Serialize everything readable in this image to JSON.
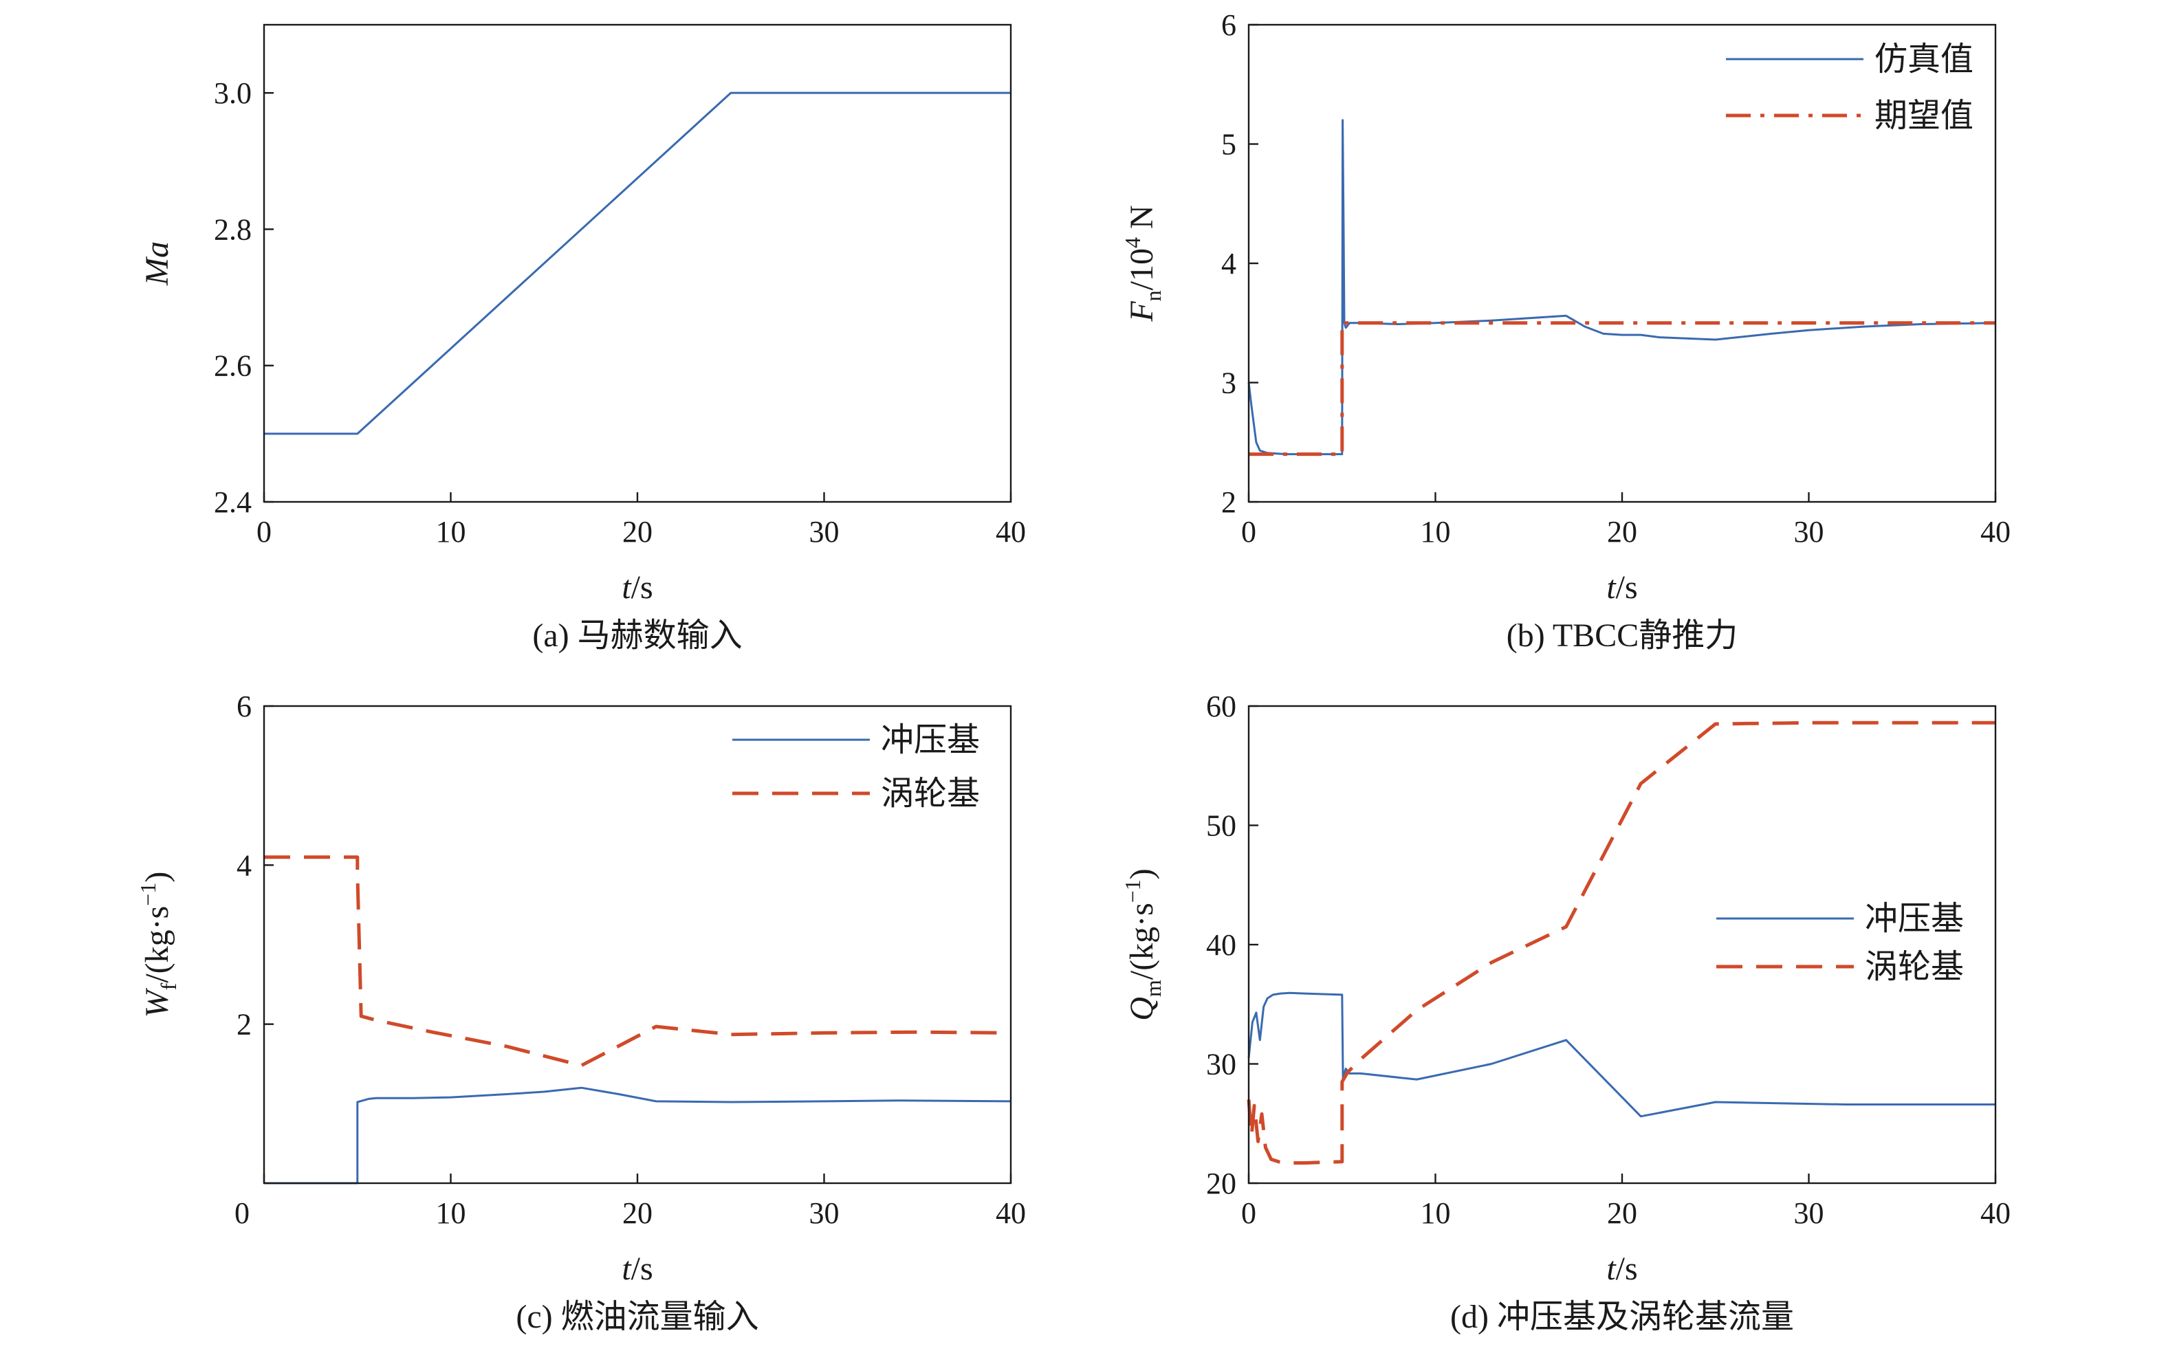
{
  "colors": {
    "blue": "#3a6ab0",
    "red": "#d04a2a",
    "axis": "#1a1a1a"
  },
  "chart_data": [
    {
      "id": "a",
      "type": "line",
      "caption": "(a) 马赫数输入",
      "xlabel_italic": "t",
      "xlabel_unit": "/s",
      "ylabel_italic": "Ma",
      "xlim": [
        0,
        40
      ],
      "ylim": [
        2.4,
        3.1
      ],
      "xticks": [
        0,
        10,
        20,
        30,
        40
      ],
      "yticks": [
        2.4,
        2.6,
        2.8,
        3.0
      ],
      "ytick_labels": [
        "2.4",
        "2.6",
        "2.8",
        "3.0"
      ],
      "series": [
        {
          "color": "blue",
          "dash": "solid",
          "x": [
            0,
            5,
            25,
            40
          ],
          "y": [
            2.5,
            2.5,
            3.0,
            3.0
          ]
        }
      ],
      "legend": []
    },
    {
      "id": "b",
      "type": "line",
      "caption": "(b) TBCC静推力",
      "xlabel_italic": "t",
      "xlabel_unit": "/s",
      "ylabel_italic": "F",
      "ylabel_sub": "n",
      "ylabel_mid": "/10",
      "ylabel_sup": "4",
      "ylabel_tail": " N",
      "xlim": [
        0,
        40
      ],
      "ylim": [
        2,
        6
      ],
      "xticks": [
        0,
        10,
        20,
        30,
        40
      ],
      "yticks": [
        2,
        3,
        4,
        5,
        6
      ],
      "ytick_labels": [
        "2",
        "3",
        "4",
        "5",
        "6"
      ],
      "series": [
        {
          "name": "仿真值",
          "color": "blue",
          "dash": "solid",
          "x": [
            0,
            0.15,
            0.4,
            0.6,
            1,
            2,
            3,
            4,
            4.95,
            5.0,
            5.03,
            5.08,
            5.12,
            5.2,
            5.4,
            6,
            8,
            10,
            13,
            15,
            17,
            18,
            19,
            20,
            21,
            22,
            25,
            28,
            30,
            33,
            36,
            40
          ],
          "y": [
            3.0,
            2.8,
            2.5,
            2.43,
            2.41,
            2.4,
            2.4,
            2.4,
            2.4,
            2.4,
            5.2,
            4.35,
            3.5,
            3.46,
            3.5,
            3.5,
            3.49,
            3.5,
            3.52,
            3.54,
            3.56,
            3.47,
            3.41,
            3.4,
            3.4,
            3.38,
            3.36,
            3.41,
            3.44,
            3.47,
            3.49,
            3.5
          ]
        },
        {
          "name": "期望值",
          "color": "red",
          "dash": "dashdot",
          "x": [
            0,
            5,
            5,
            40
          ],
          "y": [
            2.4,
            2.4,
            3.5,
            3.5
          ]
        }
      ],
      "legend": [
        "仿真值",
        "期望值"
      ]
    },
    {
      "id": "c",
      "type": "line",
      "caption": "(c) 燃油流量输入",
      "xlabel_italic": "t",
      "xlabel_unit": "/s",
      "ylabel_italic": "W",
      "ylabel_sub": "f",
      "ylabel_tail": "/(kg·s",
      "ylabel_sup": "−1",
      "ylabel_close": ")",
      "xlim": [
        0,
        40
      ],
      "ylim": [
        0,
        6
      ],
      "xticks": [
        0,
        10,
        20,
        30,
        40
      ],
      "yticks": [
        2,
        4,
        6
      ],
      "ytick_labels": [
        "2",
        "4",
        "6"
      ],
      "origin_label": "0",
      "series": [
        {
          "name": "冲压基",
          "color": "blue",
          "dash": "solid",
          "x": [
            0,
            5,
            5,
            5.3,
            5.6,
            6,
            8,
            10,
            13,
            15,
            17,
            19,
            21,
            25,
            30,
            34,
            40
          ],
          "y": [
            0,
            0,
            1.02,
            1.04,
            1.06,
            1.07,
            1.07,
            1.08,
            1.12,
            1.15,
            1.2,
            1.12,
            1.03,
            1.02,
            1.03,
            1.04,
            1.03
          ]
        },
        {
          "name": "涡轮基",
          "color": "red",
          "dash": "dashed",
          "x": [
            0,
            5,
            5,
            5.2,
            6,
            9,
            13,
            17,
            21,
            25,
            30,
            35,
            40
          ],
          "y": [
            4.1,
            4.1,
            3.9,
            2.1,
            2.05,
            1.9,
            1.72,
            1.48,
            1.97,
            1.87,
            1.89,
            1.9,
            1.89
          ]
        }
      ],
      "legend": [
        "冲压基",
        "涡轮基"
      ]
    },
    {
      "id": "d",
      "type": "line",
      "caption": "(d) 冲压基及涡轮基流量",
      "xlabel_italic": "t",
      "xlabel_unit": "/s",
      "ylabel_italic": "Q",
      "ylabel_sub": "m",
      "ylabel_tail": "/(kg·s",
      "ylabel_sup": "−1",
      "ylabel_close": ")",
      "xlim": [
        0,
        40
      ],
      "ylim": [
        20,
        60
      ],
      "xticks": [
        0,
        10,
        20,
        30,
        40
      ],
      "yticks": [
        20,
        30,
        40,
        50,
        60
      ],
      "ytick_labels": [
        "20",
        "30",
        "40",
        "50",
        "60"
      ],
      "series": [
        {
          "name": "冲压基",
          "color": "blue",
          "dash": "solid",
          "x": [
            0,
            0.2,
            0.4,
            0.6,
            0.8,
            1.0,
            1.3,
            1.7,
            2.2,
            3,
            4,
            5,
            5.05,
            5.2,
            5.4,
            6,
            9,
            13,
            17,
            21,
            25,
            32,
            40
          ],
          "y": [
            30.5,
            33.5,
            34.3,
            32,
            34.8,
            35.5,
            35.8,
            35.9,
            35.95,
            35.9,
            35.85,
            35.8,
            28.8,
            29.6,
            29.2,
            29.2,
            28.7,
            30,
            32,
            25.6,
            26.8,
            26.6,
            26.6
          ]
        },
        {
          "name": "涡轮基",
          "color": "red",
          "dash": "dashed",
          "x": [
            0,
            0.15,
            0.3,
            0.5,
            0.7,
            0.9,
            1.2,
            1.6,
            2,
            3,
            4,
            5,
            5,
            5.3,
            6,
            9,
            13,
            17,
            21,
            25,
            30,
            35,
            40
          ],
          "y": [
            27,
            24,
            26.5,
            23.5,
            25.8,
            23,
            22,
            21.8,
            21.7,
            21.7,
            21.75,
            21.8,
            28.5,
            29.3,
            30.4,
            34.5,
            38.5,
            41.5,
            53.5,
            58.5,
            58.6,
            58.6,
            58.6
          ]
        }
      ],
      "legend": [
        "冲压基",
        "涡轮基"
      ]
    }
  ]
}
